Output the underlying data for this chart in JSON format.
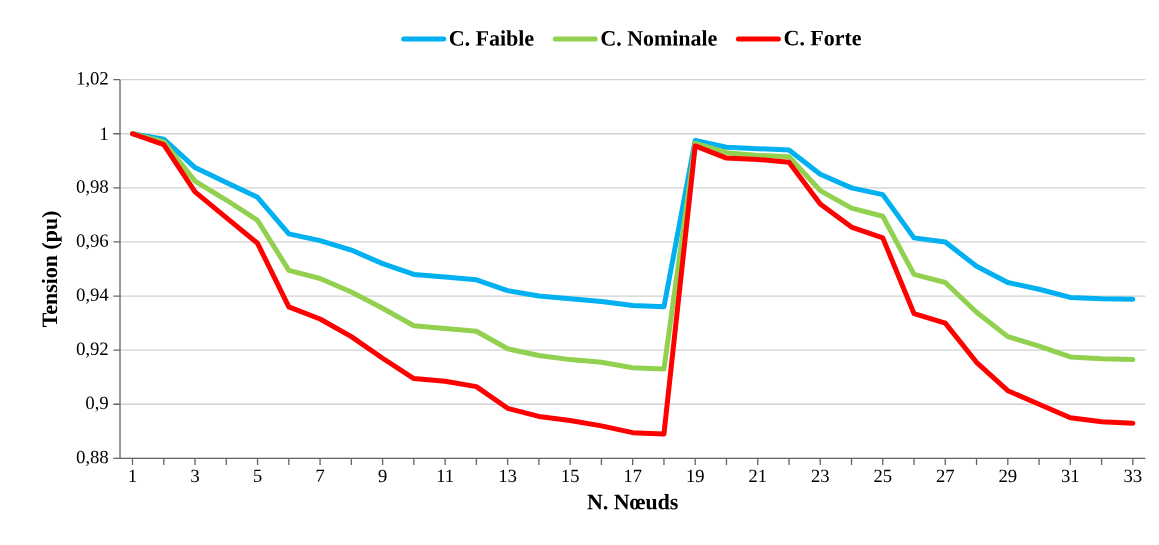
{
  "chart_data": {
    "type": "line",
    "xlabel": "N. Nœuds",
    "ylabel": "Tension (pu)",
    "categories": [
      "1",
      null,
      "3",
      null,
      "5",
      null,
      "7",
      null,
      "9",
      null,
      "11",
      null,
      "13",
      null,
      "15",
      null,
      "17",
      null,
      "19",
      null,
      "21",
      null,
      "23",
      null,
      "25",
      null,
      "27",
      null,
      "29",
      null,
      "31",
      null,
      "33"
    ],
    "series": [
      {
        "name": "C. Faible",
        "color": "#00b0f0",
        "values": [
          1.0,
          0.998,
          0.9875,
          0.982,
          0.9765,
          0.963,
          0.9605,
          0.957,
          0.952,
          0.948,
          0.947,
          0.946,
          0.942,
          0.94,
          0.939,
          0.938,
          0.9365,
          0.936,
          0.9975,
          0.995,
          0.9945,
          0.994,
          0.985,
          0.98,
          0.9775,
          0.9615,
          0.96,
          0.951,
          0.945,
          0.9425,
          0.9395,
          0.939,
          0.9388
        ]
      },
      {
        "name": "C. Nominale",
        "color": "#92d050",
        "values": [
          1.0,
          0.997,
          0.9825,
          0.9755,
          0.968,
          0.9495,
          0.9465,
          0.9415,
          0.9355,
          0.929,
          0.928,
          0.927,
          0.9205,
          0.918,
          0.9165,
          0.9155,
          0.9135,
          0.913,
          0.9965,
          0.993,
          0.992,
          0.9915,
          0.979,
          0.9725,
          0.9695,
          0.948,
          0.945,
          0.934,
          0.925,
          0.9215,
          0.9175,
          0.9168,
          0.9165
        ]
      },
      {
        "name": "C. Forte",
        "color": "#ff0000",
        "values": [
          1.0,
          0.996,
          0.9785,
          0.969,
          0.9595,
          0.936,
          0.9315,
          0.925,
          0.917,
          0.9095,
          0.9085,
          0.9065,
          0.8985,
          0.8955,
          0.894,
          0.892,
          0.8895,
          0.889,
          0.9955,
          0.991,
          0.9905,
          0.9895,
          0.974,
          0.9655,
          0.9615,
          0.9335,
          0.93,
          0.9155,
          0.905,
          0.9,
          0.895,
          0.8935,
          0.893
        ]
      }
    ],
    "ylim": [
      0.88,
      1.02
    ],
    "yticks": [
      {
        "value": 0.88,
        "label": "0,88"
      },
      {
        "value": 0.9,
        "label": "0,9"
      },
      {
        "value": 0.92,
        "label": "0,92"
      },
      {
        "value": 0.94,
        "label": "0,94"
      },
      {
        "value": 0.96,
        "label": "0,96"
      },
      {
        "value": 0.98,
        "label": "0,98"
      },
      1,
      {
        "value": 1.02,
        "label": "1,02"
      }
    ],
    "grid": "y",
    "legend": "top",
    "marker": "none",
    "line_style": "solid"
  }
}
